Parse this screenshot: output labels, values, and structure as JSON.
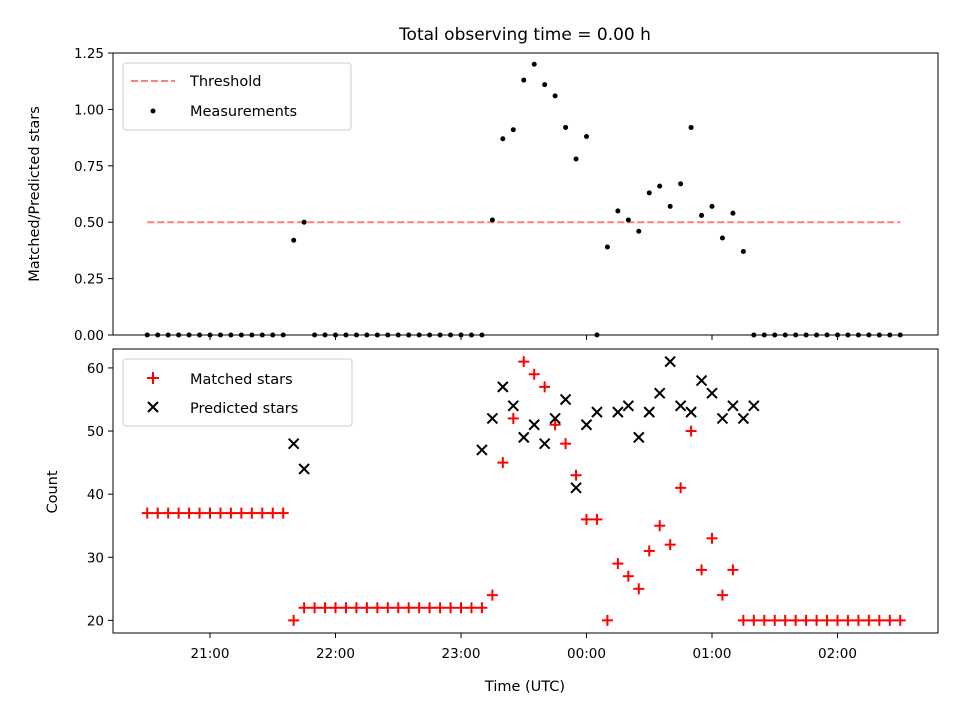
{
  "chart_data": [
    {
      "type": "scatter",
      "title": "Total observing time = 0.00 h",
      "xlabel": "",
      "ylabel": "Matched/Predicted stars",
      "ylim": [
        0,
        1.25
      ],
      "yticks": [
        0,
        0.25,
        0.5,
        0.75,
        1.0,
        1.25
      ],
      "ytick_labels": [
        "0.00",
        "0.25",
        "0.50",
        "0.75",
        "1.00",
        "1.25"
      ],
      "legend_position": "top-left",
      "series": [
        {
          "name": "Threshold",
          "kind": "line",
          "style": "dashed",
          "color": "#ff7f7f",
          "x": [
            "20:30",
            "02:30"
          ],
          "y": [
            0.5,
            0.5
          ]
        },
        {
          "name": "Measurements",
          "kind": "scatter",
          "marker": "dot",
          "color": "#000000",
          "x": [
            "20:30",
            "20:35",
            "20:40",
            "20:45",
            "20:50",
            "20:55",
            "21:00",
            "21:05",
            "21:10",
            "21:15",
            "21:20",
            "21:25",
            "21:30",
            "21:35",
            "21:40",
            "21:45",
            "21:50",
            "21:55",
            "22:00",
            "22:05",
            "22:10",
            "22:15",
            "22:20",
            "22:25",
            "22:30",
            "22:35",
            "22:40",
            "22:45",
            "22:50",
            "22:55",
            "23:00",
            "23:05",
            "23:10",
            "23:15",
            "23:20",
            "23:25",
            "23:30",
            "23:35",
            "23:40",
            "23:45",
            "23:50",
            "23:55",
            "00:00",
            "00:05",
            "00:10",
            "00:15",
            "00:20",
            "00:25",
            "00:30",
            "00:35",
            "00:40",
            "00:45",
            "00:50",
            "00:55",
            "01:00",
            "01:05",
            "01:10",
            "01:15",
            "01:20",
            "01:25",
            "01:30",
            "01:35",
            "01:40",
            "01:45",
            "01:50",
            "01:55",
            "02:00",
            "02:05",
            "02:10",
            "02:15",
            "02:20",
            "02:25",
            "02:30"
          ],
          "y": [
            0,
            0,
            0,
            0,
            0,
            0,
            0,
            0,
            0,
            0,
            0,
            0,
            0,
            0,
            0.42,
            0.5,
            0,
            0,
            0,
            0,
            0,
            0,
            0,
            0,
            0,
            0,
            0,
            0,
            0,
            0,
            0,
            0,
            0,
            0.51,
            0.87,
            0.91,
            1.13,
            1.2,
            1.11,
            1.06,
            0.92,
            0.78,
            0.88,
            0,
            0.39,
            0.55,
            0.51,
            0.46,
            0.63,
            0.66,
            0.57,
            0.67,
            0.92,
            0.53,
            0.57,
            0.43,
            0.54,
            0.37,
            0,
            0,
            0,
            0,
            0,
            0,
            0,
            0,
            0,
            0,
            0,
            0,
            0,
            0,
            0
          ]
        }
      ]
    },
    {
      "type": "scatter",
      "title": "",
      "xlabel": "Time (UTC)",
      "ylabel": "Count",
      "ylim": [
        18,
        63
      ],
      "yticks": [
        20,
        30,
        40,
        50,
        60
      ],
      "ytick_labels": [
        "20",
        "30",
        "40",
        "50",
        "60"
      ],
      "xticks": [
        "21:00",
        "22:00",
        "23:00",
        "00:00",
        "01:00",
        "02:00"
      ],
      "legend_position": "top-left",
      "series": [
        {
          "name": "Matched stars",
          "kind": "scatter",
          "marker": "plus",
          "color": "#ff0000",
          "x": [
            "20:30",
            "20:35",
            "20:40",
            "20:45",
            "20:50",
            "20:55",
            "21:00",
            "21:05",
            "21:10",
            "21:15",
            "21:20",
            "21:25",
            "21:30",
            "21:35",
            "21:40",
            "21:45",
            "21:50",
            "21:55",
            "22:00",
            "22:05",
            "22:10",
            "22:15",
            "22:20",
            "22:25",
            "22:30",
            "22:35",
            "22:40",
            "22:45",
            "22:50",
            "22:55",
            "23:00",
            "23:05",
            "23:10",
            "23:15",
            "23:20",
            "23:25",
            "23:30",
            "23:35",
            "23:40",
            "23:45",
            "23:50",
            "23:55",
            "00:00",
            "00:05",
            "00:10",
            "00:15",
            "00:20",
            "00:25",
            "00:30",
            "00:35",
            "00:40",
            "00:45",
            "00:50",
            "00:55",
            "01:00",
            "01:05",
            "01:10",
            "01:15",
            "01:20",
            "01:25",
            "01:30",
            "01:35",
            "01:40",
            "01:45",
            "01:50",
            "01:55",
            "02:00",
            "02:05",
            "02:10",
            "02:15",
            "02:20",
            "02:25",
            "02:30"
          ],
          "y": [
            37,
            37,
            37,
            37,
            37,
            37,
            37,
            37,
            37,
            37,
            37,
            37,
            37,
            37,
            20,
            22,
            22,
            22,
            22,
            22,
            22,
            22,
            22,
            22,
            22,
            22,
            22,
            22,
            22,
            22,
            22,
            22,
            22,
            24,
            45,
            52,
            61,
            59,
            57,
            51,
            48,
            43,
            36,
            36,
            20,
            29,
            27,
            25,
            31,
            35,
            32,
            41,
            50,
            28,
            33,
            24,
            28,
            20,
            20,
            20,
            20,
            20,
            20,
            20,
            20,
            20,
            20,
            20,
            20,
            20,
            20,
            20,
            20
          ]
        },
        {
          "name": "Predicted stars",
          "kind": "scatter",
          "marker": "x",
          "color": "#000000",
          "x": [
            "21:40",
            "21:45",
            "23:10",
            "23:15",
            "23:20",
            "23:25",
            "23:30",
            "23:35",
            "23:40",
            "23:45",
            "23:50",
            "23:55",
            "00:00",
            "00:05",
            "00:15",
            "00:20",
            "00:25",
            "00:30",
            "00:35",
            "00:40",
            "00:45",
            "00:50",
            "00:55",
            "01:00",
            "01:05",
            "01:10",
            "01:15",
            "01:20"
          ],
          "y": [
            48,
            44,
            47,
            52,
            57,
            54,
            49,
            51,
            48,
            52,
            55,
            41,
            51,
            53,
            53,
            54,
            49,
            53,
            56,
            61,
            54,
            53,
            58,
            56,
            52,
            54,
            52,
            54
          ]
        }
      ]
    }
  ]
}
